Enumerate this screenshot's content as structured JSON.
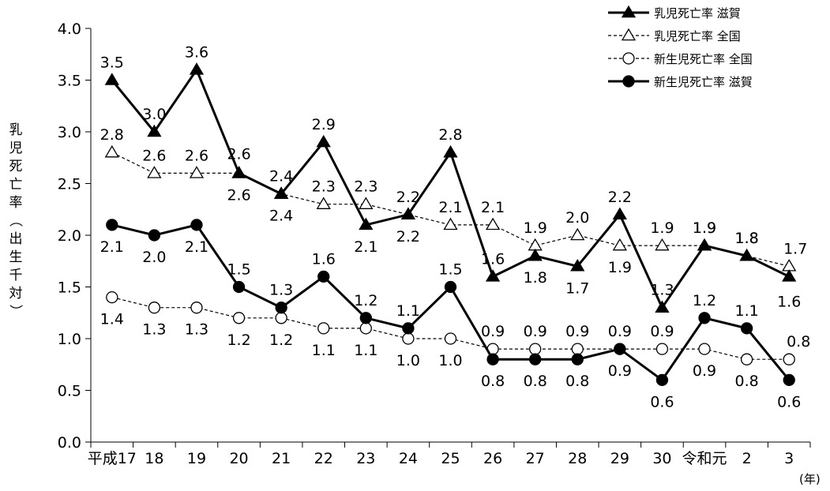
{
  "chart_data": {
    "type": "line",
    "categories": [
      "平成17",
      "18",
      "19",
      "20",
      "21",
      "22",
      "23",
      "24",
      "25",
      "26",
      "27",
      "28",
      "29",
      "30",
      "令和元",
      "2",
      "3"
    ],
    "ylabel": "乳児死亡率（出生千対）",
    "xlabel": "(年)",
    "ylim": [
      0.0,
      4.0
    ],
    "yticks": [
      "0.0",
      "0.5",
      "1.0",
      "1.5",
      "2.0",
      "2.5",
      "3.0",
      "3.5",
      "4.0"
    ],
    "legend_position": "top-right",
    "grid": false,
    "series": [
      {
        "name": "乳児死亡率 滋賀",
        "values": [
          3.5,
          3.0,
          3.6,
          2.6,
          2.4,
          2.9,
          2.1,
          2.2,
          2.8,
          1.6,
          1.8,
          1.7,
          2.2,
          1.3,
          1.9,
          1.8,
          1.6
        ],
        "labels": [
          "3.5",
          "3.0",
          "3.6",
          "2.6",
          "2.4",
          "2.9",
          "2.1",
          "2.2",
          "2.8",
          "1.6",
          "1.8",
          "1.7",
          "2.2",
          "1.3",
          "1.9",
          "1.8",
          "1.6"
        ]
      },
      {
        "name": "乳児死亡率 全国",
        "values": [
          2.8,
          2.6,
          2.6,
          2.6,
          2.4,
          2.3,
          2.3,
          2.2,
          2.1,
          2.1,
          1.9,
          2.0,
          1.9,
          1.9,
          1.9,
          1.8,
          1.7
        ],
        "labels": [
          "2.8",
          "2.6",
          "2.6",
          "2.6",
          "2.4",
          "2.3",
          "2.3",
          "2.2",
          "2.1",
          "2.1",
          "1.9",
          "2.0",
          "1.9",
          "1.9",
          "1.9",
          "1.8",
          "1.7"
        ]
      },
      {
        "name": "新生児死亡率 全国",
        "values": [
          1.4,
          1.3,
          1.3,
          1.2,
          1.2,
          1.1,
          1.1,
          1.0,
          1.0,
          0.9,
          0.9,
          0.9,
          0.9,
          0.9,
          0.9,
          0.8,
          0.8
        ],
        "labels": [
          "1.4",
          "1.3",
          "1.3",
          "1.2",
          "1.2",
          "1.1",
          "1.1",
          "1.0",
          "1.0",
          "0.9",
          "0.9",
          "0.9",
          "0.9",
          "0.9",
          "0.9",
          "0.8",
          "0.8"
        ]
      },
      {
        "name": "新生児死亡率 滋賀",
        "values": [
          2.1,
          2.0,
          2.1,
          1.5,
          1.3,
          1.6,
          1.2,
          1.1,
          1.5,
          0.8,
          0.8,
          0.8,
          0.9,
          0.6,
          1.2,
          1.1,
          0.6
        ],
        "labels": [
          "2.1",
          "2.0",
          "2.1",
          "1.5",
          "1.3",
          "1.6",
          "1.2",
          "1.1",
          "1.5",
          "0.8",
          "0.8",
          "0.8",
          "0.9",
          "0.6",
          "1.2",
          "1.1",
          "0.6"
        ]
      }
    ]
  }
}
